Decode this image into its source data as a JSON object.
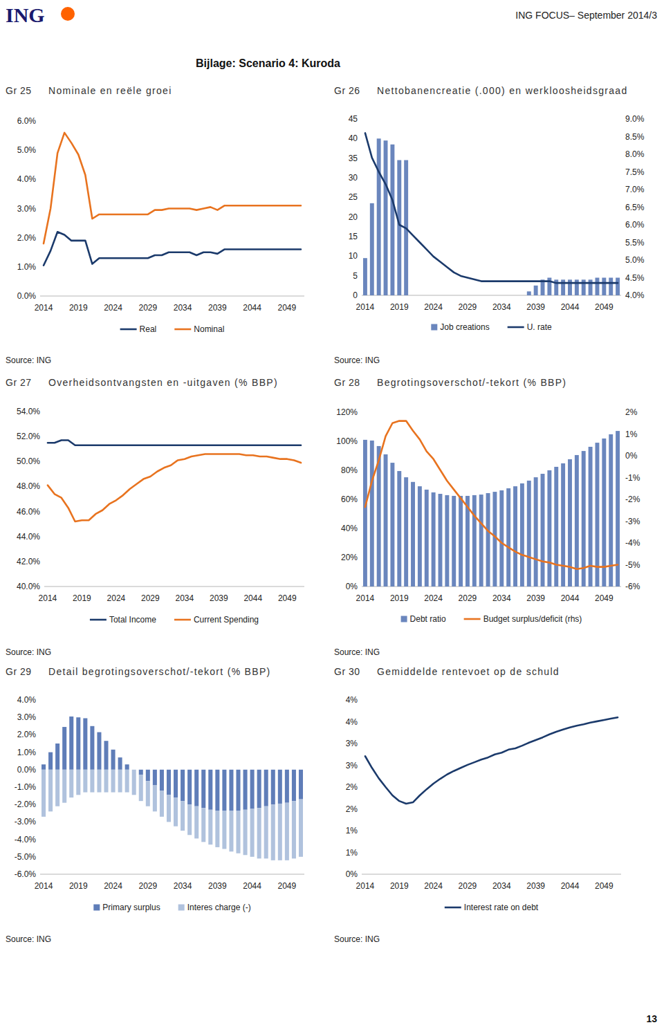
{
  "page": {
    "logo": "ING",
    "header": "ING FOCUS– September 2014/3",
    "title": "Bijlage: Scenario 4: Kuroda",
    "page_number": "13"
  },
  "chart_data": [
    {
      "type": "line",
      "figure": "Gr 25",
      "title": "Nominale en reële groei",
      "source": "Source: ING",
      "x": [
        2014,
        2015,
        2016,
        2017,
        2018,
        2019,
        2020,
        2021,
        2022,
        2023,
        2024,
        2025,
        2026,
        2027,
        2028,
        2029,
        2030,
        2031,
        2032,
        2033,
        2034,
        2035,
        2036,
        2037,
        2038,
        2039,
        2040,
        2041,
        2042,
        2043,
        2044,
        2045,
        2046,
        2047,
        2048,
        2049,
        2050,
        2051
      ],
      "xlim": [
        2013.5,
        2051.5
      ],
      "xticks": [
        2014,
        2019,
        2024,
        2029,
        2034,
        2039,
        2044,
        2049
      ],
      "ylim": [
        0,
        6
      ],
      "yticks": [
        {
          "value": 0,
          "label": "0.0%"
        },
        {
          "value": 1,
          "label": "1.0%"
        },
        {
          "value": 2,
          "label": "2.0%"
        },
        {
          "value": 3,
          "label": "3.0%"
        },
        {
          "value": 4,
          "label": "4.0%"
        },
        {
          "value": 5,
          "label": "5.0%"
        },
        {
          "value": 6,
          "label": "6.0%"
        }
      ],
      "legend": "bottom",
      "series": [
        {
          "name": "Real",
          "color": "#1b3a6b",
          "values": [
            1.05,
            1.55,
            2.2,
            2.1,
            1.9,
            1.9,
            1.9,
            1.1,
            1.3,
            1.3,
            1.3,
            1.3,
            1.3,
            1.3,
            1.3,
            1.3,
            1.4,
            1.4,
            1.5,
            1.5,
            1.5,
            1.5,
            1.4,
            1.5,
            1.5,
            1.45,
            1.6,
            1.6,
            1.6,
            1.6,
            1.6,
            1.6,
            1.6,
            1.6,
            1.6,
            1.6,
            1.6,
            1.6
          ]
        },
        {
          "name": "Nominal",
          "color": "#e8731f",
          "values": [
            1.8,
            3.0,
            4.9,
            5.6,
            5.25,
            4.85,
            4.15,
            2.65,
            2.8,
            2.8,
            2.8,
            2.8,
            2.8,
            2.8,
            2.8,
            2.8,
            2.95,
            2.95,
            3.0,
            3.0,
            3.0,
            3.0,
            2.95,
            3.0,
            3.05,
            2.95,
            3.1,
            3.1,
            3.1,
            3.1,
            3.1,
            3.1,
            3.1,
            3.1,
            3.1,
            3.1,
            3.1,
            3.1
          ]
        }
      ]
    },
    {
      "type": "bar",
      "figure": "Gr 26",
      "title": "Nettobanencreatie (.000) en werkloosheidsgraad",
      "source": "Source: ING",
      "x": [
        2014,
        2015,
        2016,
        2017,
        2018,
        2019,
        2020,
        2021,
        2022,
        2023,
        2024,
        2025,
        2026,
        2027,
        2028,
        2029,
        2030,
        2031,
        2032,
        2033,
        2034,
        2035,
        2036,
        2037,
        2038,
        2039,
        2040,
        2041,
        2042,
        2043,
        2044,
        2045,
        2046,
        2047,
        2048,
        2049,
        2050,
        2051
      ],
      "xlim": [
        2013.5,
        2051.5
      ],
      "xticks": [
        2014,
        2019,
        2024,
        2029,
        2034,
        2039,
        2044,
        2049
      ],
      "ylim": [
        0,
        45
      ],
      "yticks": [
        0,
        5,
        10,
        15,
        20,
        25,
        30,
        35,
        40,
        45
      ],
      "y2lim": [
        4,
        9
      ],
      "y2ticks": [
        {
          "value": 4,
          "label": "4.0%"
        },
        {
          "value": 4.5,
          "label": "4.5%"
        },
        {
          "value": 5,
          "label": "5.0%"
        },
        {
          "value": 5.5,
          "label": "5.5%"
        },
        {
          "value": 6,
          "label": "6.0%"
        },
        {
          "value": 6.5,
          "label": "6.5%"
        },
        {
          "value": 7,
          "label": "7.0%"
        },
        {
          "value": 7.5,
          "label": "7.5%"
        },
        {
          "value": 8,
          "label": "8.0%"
        },
        {
          "value": 8.5,
          "label": "8.5%"
        },
        {
          "value": 9,
          "label": "9.0%"
        }
      ],
      "legend": "bottom",
      "series": [
        {
          "name": "Job creations",
          "type": "bar",
          "color": "#6a86bd",
          "values": [
            9.5,
            23.5,
            40,
            39.5,
            38.5,
            34.5,
            34.5,
            0,
            0,
            0,
            0,
            0,
            0,
            0,
            0,
            0,
            0,
            0,
            0,
            0,
            0,
            0,
            0,
            0,
            1,
            2.5,
            4,
            4.5,
            4,
            4,
            4,
            4,
            4,
            4,
            4.5,
            4.5,
            4.5,
            4.5
          ]
        },
        {
          "name": "U. rate",
          "type": "line",
          "axis": "y2",
          "color": "#1b3a6b",
          "values": [
            8.6,
            7.9,
            7.5,
            7.15,
            6.7,
            6.0,
            5.9,
            5.7,
            5.5,
            5.3,
            5.1,
            4.95,
            4.8,
            4.65,
            4.55,
            4.5,
            4.45,
            4.4,
            4.4,
            4.4,
            4.4,
            4.4,
            4.4,
            4.4,
            4.4,
            4.4,
            4.4,
            4.4,
            4.35,
            4.35,
            4.35,
            4.35,
            4.35,
            4.35,
            4.35,
            4.35,
            4.35,
            4.35
          ]
        }
      ]
    },
    {
      "type": "line",
      "figure": "Gr 27",
      "title": "Overheidsontvangsten en -uitgaven (% BBP)",
      "source": "Source: ING",
      "x": [
        2014,
        2015,
        2016,
        2017,
        2018,
        2019,
        2020,
        2021,
        2022,
        2023,
        2024,
        2025,
        2026,
        2027,
        2028,
        2029,
        2030,
        2031,
        2032,
        2033,
        2034,
        2035,
        2036,
        2037,
        2038,
        2039,
        2040,
        2041,
        2042,
        2043,
        2044,
        2045,
        2046,
        2047,
        2048,
        2049,
        2050,
        2051
      ],
      "xlim": [
        2013.5,
        2051.5
      ],
      "xticks": [
        2014,
        2019,
        2024,
        2029,
        2034,
        2039,
        2044,
        2049
      ],
      "ylim": [
        40,
        54
      ],
      "yticks": [
        {
          "value": 40,
          "label": "40.0%"
        },
        {
          "value": 42,
          "label": "42.0%"
        },
        {
          "value": 44,
          "label": "44.0%"
        },
        {
          "value": 46,
          "label": "46.0%"
        },
        {
          "value": 48,
          "label": "48.0%"
        },
        {
          "value": 50,
          "label": "50.0%"
        },
        {
          "value": 52,
          "label": "52.0%"
        },
        {
          "value": 54,
          "label": "54.0%"
        }
      ],
      "legend": "bottom",
      "series": [
        {
          "name": "Total Income",
          "color": "#1b3a6b",
          "values": [
            51.5,
            51.5,
            51.7,
            51.7,
            51.3,
            51.3,
            51.3,
            51.3,
            51.3,
            51.3,
            51.3,
            51.3,
            51.3,
            51.3,
            51.3,
            51.3,
            51.3,
            51.3,
            51.3,
            51.3,
            51.3,
            51.3,
            51.3,
            51.3,
            51.3,
            51.3,
            51.3,
            51.3,
            51.3,
            51.3,
            51.3,
            51.3,
            51.3,
            51.3,
            51.3,
            51.3,
            51.3,
            51.3
          ]
        },
        {
          "name": "Current Spending",
          "color": "#e8731f",
          "values": [
            48.1,
            47.4,
            47.1,
            46.3,
            45.2,
            45.3,
            45.3,
            45.8,
            46.1,
            46.6,
            46.9,
            47.3,
            47.8,
            48.2,
            48.6,
            48.8,
            49.2,
            49.5,
            49.7,
            50.1,
            50.2,
            50.4,
            50.5,
            50.6,
            50.6,
            50.6,
            50.6,
            50.6,
            50.6,
            50.5,
            50.5,
            50.4,
            50.4,
            50.3,
            50.2,
            50.2,
            50.1,
            49.9
          ]
        }
      ]
    },
    {
      "type": "bar",
      "figure": "Gr 28",
      "title": "Begrotingsoverschot/-tekort (% BBP)",
      "source": "Source: ING",
      "x": [
        2014,
        2015,
        2016,
        2017,
        2018,
        2019,
        2020,
        2021,
        2022,
        2023,
        2024,
        2025,
        2026,
        2027,
        2028,
        2029,
        2030,
        2031,
        2032,
        2033,
        2034,
        2035,
        2036,
        2037,
        2038,
        2039,
        2040,
        2041,
        2042,
        2043,
        2044,
        2045,
        2046,
        2047,
        2048,
        2049,
        2050,
        2051
      ],
      "xlim": [
        2013.5,
        2051.5
      ],
      "xticks": [
        2014,
        2019,
        2024,
        2029,
        2034,
        2039,
        2044,
        2049
      ],
      "ylim": [
        0,
        120
      ],
      "yticks": [
        {
          "value": 0,
          "label": "0%"
        },
        {
          "value": 20,
          "label": "20%"
        },
        {
          "value": 40,
          "label": "40%"
        },
        {
          "value": 60,
          "label": "60%"
        },
        {
          "value": 80,
          "label": "80%"
        },
        {
          "value": 100,
          "label": "100%"
        },
        {
          "value": 120,
          "label": "120%"
        }
      ],
      "y2lim": [
        -6,
        2
      ],
      "y2ticks": [
        {
          "value": -6,
          "label": "-6%"
        },
        {
          "value": -5,
          "label": "-5%"
        },
        {
          "value": -4,
          "label": "-4%"
        },
        {
          "value": -3,
          "label": "-3%"
        },
        {
          "value": -2,
          "label": "-2%"
        },
        {
          "value": -1,
          "label": "-1%"
        },
        {
          "value": 0,
          "label": "0%"
        },
        {
          "value": 1,
          "label": "1%"
        },
        {
          "value": 2,
          "label": "2%"
        }
      ],
      "legend": "bottom",
      "series": [
        {
          "name": "Debt ratio",
          "type": "bar",
          "color": "#6a86bd",
          "values": [
            101,
            100.5,
            96.7,
            91,
            85.2,
            79.5,
            75.2,
            72,
            69,
            66.7,
            64.8,
            63.8,
            62.9,
            62.4,
            62.4,
            62.4,
            62.9,
            63.3,
            64.3,
            65.2,
            66.2,
            67.6,
            69,
            71,
            72.9,
            75.2,
            77.6,
            80,
            82.4,
            84.8,
            87.6,
            90.5,
            93.3,
            96.2,
            99,
            101.9,
            104.8,
            107.1
          ]
        },
        {
          "name": "Budget surplus/deficit (rhs)",
          "type": "line",
          "axis": "y2",
          "color": "#e8731f",
          "values": [
            -2.35,
            -1.15,
            -0.2,
            0.9,
            1.5,
            1.6,
            1.6,
            1.15,
            0.75,
            0.2,
            -0.15,
            -0.65,
            -1.15,
            -1.55,
            -1.95,
            -2.35,
            -2.75,
            -3.1,
            -3.45,
            -3.7,
            -4.0,
            -4.2,
            -4.4,
            -4.55,
            -4.65,
            -4.75,
            -4.85,
            -4.9,
            -5.0,
            -5.05,
            -5.1,
            -5.2,
            -5.15,
            -5.05,
            -5.1,
            -5.1,
            -5.05,
            -5.0
          ]
        }
      ]
    },
    {
      "type": "bar",
      "stacked": true,
      "figure": "Gr 29",
      "title": "Detail begrotingsoverschot/-tekort (% BBP)",
      "source": "Source: ING",
      "x": [
        2014,
        2015,
        2016,
        2017,
        2018,
        2019,
        2020,
        2021,
        2022,
        2023,
        2024,
        2025,
        2026,
        2027,
        2028,
        2029,
        2030,
        2031,
        2032,
        2033,
        2034,
        2035,
        2036,
        2037,
        2038,
        2039,
        2040,
        2041,
        2042,
        2043,
        2044,
        2045,
        2046,
        2047,
        2048,
        2049,
        2050,
        2051
      ],
      "xlim": [
        2013.5,
        2051.5
      ],
      "xticks": [
        2014,
        2019,
        2024,
        2029,
        2034,
        2039,
        2044,
        2049
      ],
      "ylim": [
        -6,
        4
      ],
      "yticks": [
        {
          "value": -6,
          "label": "-6.0%"
        },
        {
          "value": -5,
          "label": "-5.0%"
        },
        {
          "value": -4,
          "label": "-4.0%"
        },
        {
          "value": -3,
          "label": "-3.0%"
        },
        {
          "value": -2,
          "label": "-2.0%"
        },
        {
          "value": -1,
          "label": "-1.0%"
        },
        {
          "value": 0,
          "label": "0.0%"
        },
        {
          "value": 1,
          "label": "1.0%"
        },
        {
          "value": 2,
          "label": "2.0%"
        },
        {
          "value": 3,
          "label": "3.0%"
        },
        {
          "value": 4,
          "label": "4.0%"
        }
      ],
      "legend": "bottom",
      "series": [
        {
          "name": "Primary surplus",
          "color": "#5f7db8",
          "values": [
            0.3,
            1.0,
            1.5,
            2.45,
            3.05,
            3.0,
            2.95,
            2.5,
            2.15,
            1.65,
            1.15,
            0.7,
            0.3,
            0.0,
            -0.3,
            -0.65,
            -0.9,
            -1.2,
            -1.45,
            -1.6,
            -1.8,
            -2.0,
            -2.1,
            -2.2,
            -2.3,
            -2.35,
            -2.35,
            -2.35,
            -2.35,
            -2.3,
            -2.25,
            -2.2,
            -2.1,
            -2.0,
            -1.95,
            -1.9,
            -1.8,
            -1.7
          ]
        },
        {
          "name": "Interes charge (-)",
          "color": "#b0c2dd",
          "values": [
            -2.7,
            -2.4,
            -2.1,
            -1.9,
            -1.6,
            -1.45,
            -1.3,
            -1.3,
            -1.3,
            -1.3,
            -1.3,
            -1.3,
            -1.3,
            -1.45,
            -1.5,
            -1.45,
            -1.5,
            -1.5,
            -1.55,
            -1.65,
            -1.7,
            -1.75,
            -1.85,
            -1.95,
            -2.0,
            -2.1,
            -2.2,
            -2.35,
            -2.45,
            -2.6,
            -2.75,
            -2.9,
            -3.0,
            -3.2,
            -3.25,
            -3.3,
            -3.3,
            -3.3
          ]
        }
      ]
    },
    {
      "type": "line",
      "figure": "Gr 30",
      "title": "Gemiddelde rentevoet op de schuld",
      "source": "Source: ING",
      "x": [
        2014,
        2015,
        2016,
        2017,
        2018,
        2019,
        2020,
        2021,
        2022,
        2023,
        2024,
        2025,
        2026,
        2027,
        2028,
        2029,
        2030,
        2031,
        2032,
        2033,
        2034,
        2035,
        2036,
        2037,
        2038,
        2039,
        2040,
        2041,
        2042,
        2043,
        2044,
        2045,
        2046,
        2047,
        2048,
        2049,
        2050,
        2051
      ],
      "xlim": [
        2013.5,
        2051.5
      ],
      "xticks": [
        2014,
        2019,
        2024,
        2029,
        2034,
        2039,
        2044,
        2049
      ],
      "ylim": [
        0,
        4
      ],
      "yticks": [
        {
          "value": 0,
          "label": "0%"
        },
        {
          "value": 0.5,
          "label": "1%"
        },
        {
          "value": 1,
          "label": "1%"
        },
        {
          "value": 1.5,
          "label": "2%"
        },
        {
          "value": 2,
          "label": "2%"
        },
        {
          "value": 2.5,
          "label": "3%"
        },
        {
          "value": 3,
          "label": "3%"
        },
        {
          "value": 3.5,
          "label": "4%"
        },
        {
          "value": 4,
          "label": "4%"
        }
      ],
      "legend": "bottom",
      "series": [
        {
          "name": "Interest rate on debt",
          "color": "#1b3a6b",
          "values": [
            2.71,
            2.44,
            2.2,
            2.0,
            1.81,
            1.68,
            1.62,
            1.65,
            1.81,
            1.95,
            2.08,
            2.19,
            2.29,
            2.37,
            2.44,
            2.51,
            2.57,
            2.63,
            2.68,
            2.75,
            2.79,
            2.86,
            2.89,
            2.95,
            3.02,
            3.08,
            3.14,
            3.21,
            3.27,
            3.32,
            3.37,
            3.41,
            3.44,
            3.48,
            3.51,
            3.54,
            3.57,
            3.6
          ]
        }
      ]
    }
  ]
}
